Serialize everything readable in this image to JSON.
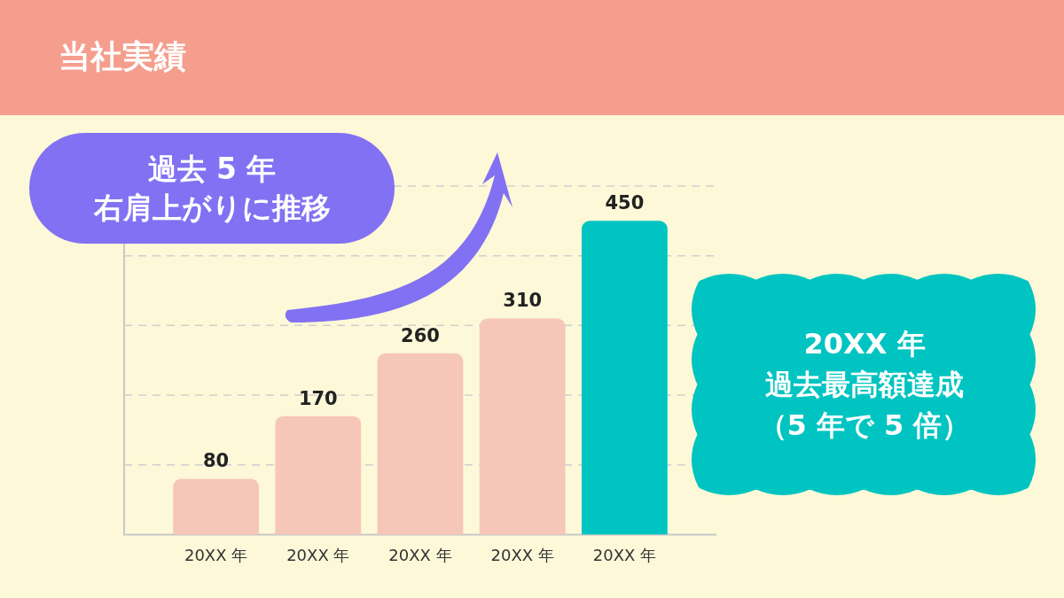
{
  "chart_data": {
    "type": "bar",
    "title": "当社実績",
    "categories": [
      "20XX 年",
      "20XX 年",
      "20XX 年",
      "20XX 年",
      "20XX 年"
    ],
    "values": [
      80,
      170,
      260,
      310,
      450
    ],
    "colors": [
      "#f6c6b8",
      "#f6c6b8",
      "#f6c6b8",
      "#f6c6b8",
      "#00c4c1"
    ],
    "ylim": [
      0,
      500
    ],
    "yticks": [
      {
        "value": 100,
        "label": null
      },
      {
        "value": 200,
        "label": null
      },
      {
        "value": 300,
        "label": null
      },
      {
        "value": 400,
        "label": null
      },
      {
        "value": 500,
        "label": null
      }
    ],
    "tick_labels": "x",
    "grid": "y",
    "data_labels": true,
    "annotations": [
      "過去 5 年",
      "右肩上がりに推移",
      "20XX 年",
      "過去最高額達成",
      "（5 年で 5 倍）"
    ]
  }
}
